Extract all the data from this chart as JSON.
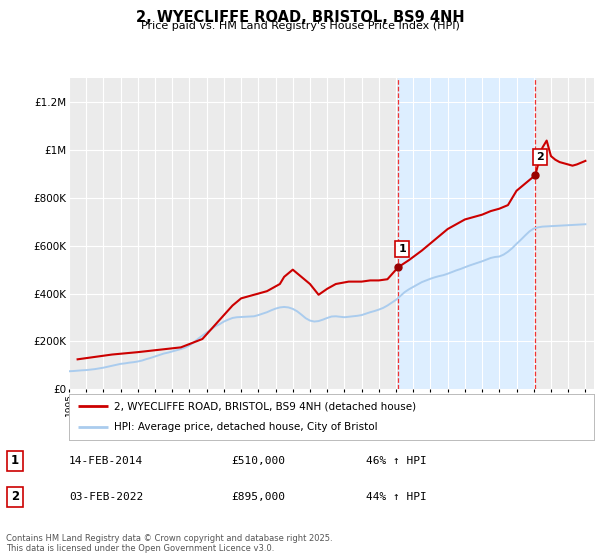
{
  "title": "2, WYECLIFFE ROAD, BRISTOL, BS9 4NH",
  "subtitle": "Price paid vs. HM Land Registry's House Price Index (HPI)",
  "ylim": [
    0,
    1300000
  ],
  "yticks": [
    0,
    200000,
    400000,
    600000,
    800000,
    1000000,
    1200000
  ],
  "ytick_labels": [
    "£0",
    "£200K",
    "£400K",
    "£600K",
    "£800K",
    "£1M",
    "£1.2M"
  ],
  "xlim_start": 1995.0,
  "xlim_end": 2025.5,
  "background_color": "#ffffff",
  "plot_bg_color": "#ebebeb",
  "grid_color": "#ffffff",
  "line1_color": "#cc0000",
  "line2_color": "#aaccee",
  "marker_color": "#990000",
  "shade_color": "#ddeeff",
  "dashed_line_color": "#ee3333",
  "event1_x": 2014.12,
  "event1_y": 510000,
  "event2_x": 2022.09,
  "event2_y": 895000,
  "legend_line1": "2, WYECLIFFE ROAD, BRISTOL, BS9 4NH (detached house)",
  "legend_line2": "HPI: Average price, detached house, City of Bristol",
  "ann1_date": "14-FEB-2014",
  "ann1_price": "£510,000",
  "ann1_hpi": "46% ↑ HPI",
  "ann2_date": "03-FEB-2022",
  "ann2_price": "£895,000",
  "ann2_hpi": "44% ↑ HPI",
  "footer": "Contains HM Land Registry data © Crown copyright and database right 2025.\nThis data is licensed under the Open Government Licence v3.0.",
  "hpi_years": [
    1995,
    1995.25,
    1995.5,
    1995.75,
    1996,
    1996.25,
    1996.5,
    1996.75,
    1997,
    1997.25,
    1997.5,
    1997.75,
    1998,
    1998.25,
    1998.5,
    1998.75,
    1999,
    1999.25,
    1999.5,
    1999.75,
    2000,
    2000.25,
    2000.5,
    2000.75,
    2001,
    2001.25,
    2001.5,
    2001.75,
    2002,
    2002.25,
    2002.5,
    2002.75,
    2003,
    2003.25,
    2003.5,
    2003.75,
    2004,
    2004.25,
    2004.5,
    2004.75,
    2005,
    2005.25,
    2005.5,
    2005.75,
    2006,
    2006.25,
    2006.5,
    2006.75,
    2007,
    2007.25,
    2007.5,
    2007.75,
    2008,
    2008.25,
    2008.5,
    2008.75,
    2009,
    2009.25,
    2009.5,
    2009.75,
    2010,
    2010.25,
    2010.5,
    2010.75,
    2011,
    2011.25,
    2011.5,
    2011.75,
    2012,
    2012.25,
    2012.5,
    2012.75,
    2013,
    2013.25,
    2013.5,
    2013.75,
    2014,
    2014.25,
    2014.5,
    2014.75,
    2015,
    2015.25,
    2015.5,
    2015.75,
    2016,
    2016.25,
    2016.5,
    2016.75,
    2017,
    2017.25,
    2017.5,
    2017.75,
    2018,
    2018.25,
    2018.5,
    2018.75,
    2019,
    2019.25,
    2019.5,
    2019.75,
    2020,
    2020.25,
    2020.5,
    2020.75,
    2021,
    2021.25,
    2021.5,
    2021.75,
    2022,
    2022.25,
    2022.5,
    2022.75,
    2023,
    2023.25,
    2023.5,
    2023.75,
    2024,
    2024.25,
    2024.5,
    2024.75,
    2025
  ],
  "hpi_values": [
    75000,
    76000,
    77500,
    79000,
    80000,
    82000,
    84000,
    87000,
    90000,
    94000,
    98000,
    102000,
    106000,
    108000,
    111000,
    113000,
    116000,
    120000,
    126000,
    131000,
    137000,
    143000,
    149000,
    153000,
    158000,
    163000,
    168000,
    174000,
    183000,
    196000,
    211000,
    224000,
    237000,
    250000,
    263000,
    272000,
    283000,
    291000,
    298000,
    301000,
    302000,
    303000,
    304000,
    305000,
    310000,
    316000,
    322000,
    330000,
    337000,
    342000,
    344000,
    342000,
    336000,
    326000,
    312000,
    297000,
    287000,
    283000,
    285000,
    291000,
    298000,
    304000,
    305000,
    303000,
    301000,
    303000,
    305000,
    307000,
    310000,
    316000,
    322000,
    327000,
    333000,
    340000,
    350000,
    362000,
    374000,
    390000,
    406000,
    418000,
    428000,
    438000,
    448000,
    455000,
    462000,
    468000,
    473000,
    477000,
    483000,
    490000,
    497000,
    503000,
    510000,
    517000,
    523000,
    529000,
    535000,
    542000,
    549000,
    553000,
    555000,
    563000,
    575000,
    590000,
    608000,
    625000,
    643000,
    660000,
    672000,
    677000,
    680000,
    681000,
    682000,
    683000,
    684000,
    685000,
    686000,
    687000,
    688000,
    689000,
    690000
  ],
  "price_years": [
    1995.5,
    1997.5,
    1999.0,
    2000.25,
    2001.5,
    2002.75,
    2003.5,
    2004.0,
    2004.5,
    2005.0,
    2005.75,
    2006.5,
    2007.25,
    2007.5,
    2008.0,
    2009.0,
    2009.5,
    2010.0,
    2010.5,
    2011.25,
    2012.0,
    2012.5,
    2013.0,
    2013.5,
    2014.12,
    2014.75,
    2015.5,
    2016.0,
    2016.5,
    2017.0,
    2017.5,
    2017.75,
    2018.0,
    2018.5,
    2019.0,
    2019.5,
    2020.0,
    2020.5,
    2020.75,
    2021.0,
    2021.25,
    2021.5,
    2021.75,
    2022.09,
    2022.5,
    2022.75,
    2023.0,
    2023.25,
    2023.5,
    2023.75,
    2024.0,
    2024.25,
    2024.5,
    2025.0
  ],
  "price_values": [
    125000,
    145000,
    155000,
    165000,
    175000,
    210000,
    270000,
    310000,
    350000,
    380000,
    395000,
    410000,
    440000,
    470000,
    500000,
    440000,
    395000,
    420000,
    440000,
    450000,
    450000,
    455000,
    455000,
    460000,
    510000,
    540000,
    580000,
    610000,
    640000,
    670000,
    690000,
    700000,
    710000,
    720000,
    730000,
    745000,
    755000,
    770000,
    800000,
    830000,
    845000,
    860000,
    875000,
    895000,
    1010000,
    1040000,
    975000,
    960000,
    950000,
    945000,
    940000,
    935000,
    940000,
    955000
  ]
}
